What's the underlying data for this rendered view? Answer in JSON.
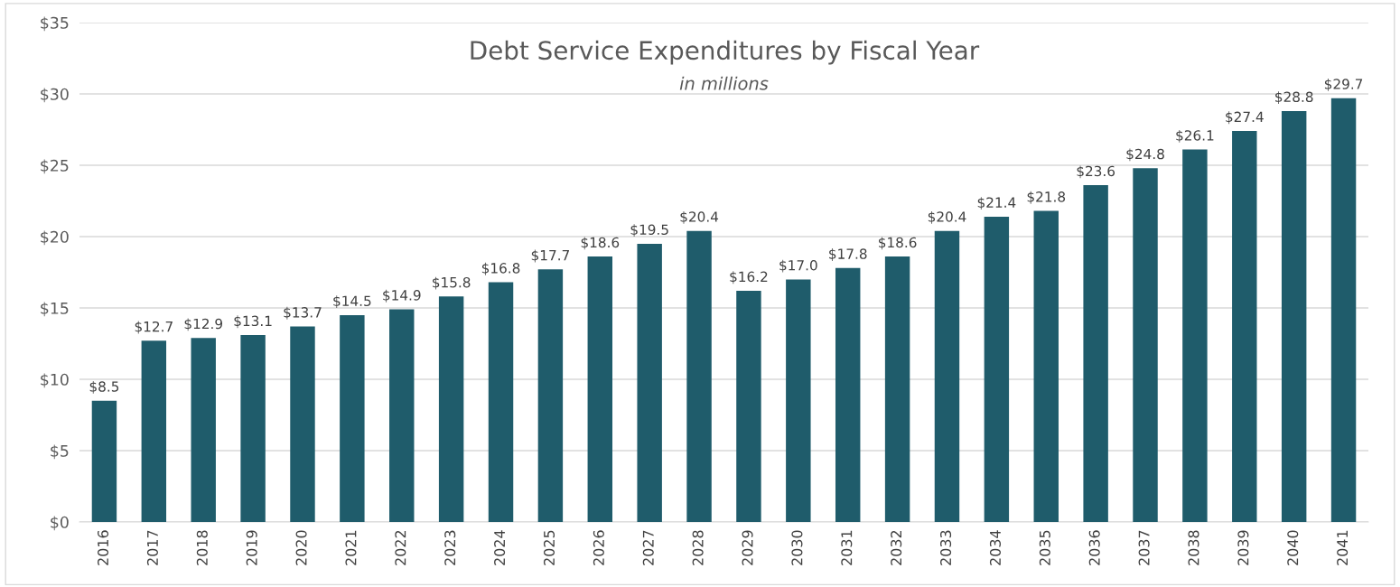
{
  "chart_data": {
    "type": "bar",
    "title": "Debt Service Expenditures by Fiscal Year",
    "subtitle": "in millions",
    "categories": [
      "2016",
      "2017",
      "2018",
      "2019",
      "2020",
      "2021",
      "2022",
      "2023",
      "2024",
      "2025",
      "2026",
      "2027",
      "2028",
      "2029",
      "2030",
      "2031",
      "2032",
      "2033",
      "2034",
      "2035",
      "2036",
      "2037",
      "2038",
      "2039",
      "2040",
      "2041"
    ],
    "values": [
      8.5,
      12.7,
      12.9,
      13.1,
      13.7,
      14.5,
      14.9,
      15.8,
      16.8,
      17.7,
      18.6,
      19.5,
      20.4,
      16.2,
      17.0,
      17.8,
      18.6,
      20.4,
      21.4,
      21.8,
      23.6,
      24.8,
      26.1,
      27.4,
      28.8,
      29.7
    ],
    "value_labels": [
      "$8.5",
      "$12.7",
      "$12.9",
      "$13.1",
      "$13.7",
      "$14.5",
      "$14.9",
      "$15.8",
      "$16.8",
      "$17.7",
      "$18.6",
      "$19.5",
      "$20.4",
      "$16.2",
      "$17.0",
      "$17.8",
      "$18.6",
      "$20.4",
      "$21.4",
      "$21.8",
      "$23.6",
      "$24.8",
      "$26.1",
      "$27.4",
      "$28.8",
      "$29.7"
    ],
    "color": "#1f5c6b",
    "ylim": [
      0,
      35
    ],
    "yticks": [
      {
        "value": 0,
        "label": "$0"
      },
      {
        "value": 5,
        "label": "$5"
      },
      {
        "value": 10,
        "label": "$10"
      },
      {
        "value": 15,
        "label": "$15"
      },
      {
        "value": 20,
        "label": "$20"
      },
      {
        "value": 25,
        "label": "$25"
      },
      {
        "value": 30,
        "label": "$30"
      },
      {
        "value": 35,
        "label": "$35"
      }
    ],
    "grid": "y",
    "legend": false
  }
}
